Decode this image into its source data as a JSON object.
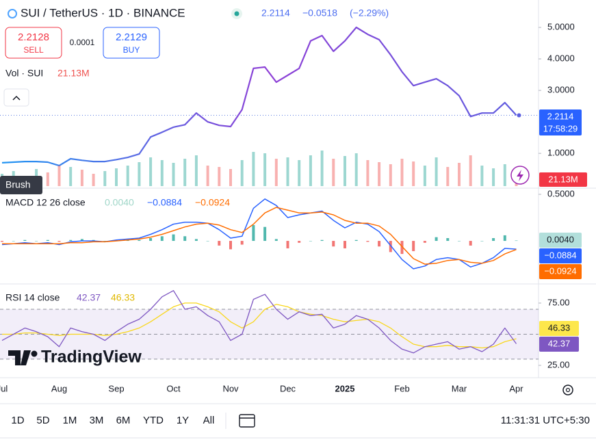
{
  "ui": {
    "title": "SUI / TetherUS · 1D · BINANCE",
    "price": "2.2114",
    "change": "−0.0518",
    "change_pct": "(−2.29%)",
    "sell_price": "2.2128",
    "sell": "SELL",
    "spread": "0.0001",
    "buy_price": "2.2129",
    "buy": "BUY",
    "tooltip": "Brush",
    "logo": "TradingView",
    "timeframes": [
      "1D",
      "5D",
      "1M",
      "3M",
      "6M",
      "YTD",
      "1Y",
      "All"
    ],
    "clock": "11:31:31 UTC+5:30"
  },
  "chart_data": [
    {
      "type": "line",
      "categories": [
        "Jul",
        null,
        null,
        null,
        null,
        "Aug",
        null,
        null,
        null,
        null,
        "Sep",
        null,
        null,
        null,
        null,
        "Oct",
        null,
        null,
        null,
        null,
        "Nov",
        null,
        null,
        null,
        null,
        "Dec",
        null,
        null,
        null,
        null,
        "2025",
        null,
        null,
        null,
        null,
        "Feb",
        null,
        null,
        null,
        null,
        "Mar",
        null,
        null,
        null,
        null,
        "Apr"
      ],
      "values": [
        0.7,
        0.72,
        0.74,
        0.74,
        0.72,
        0.61,
        0.83,
        0.78,
        0.74,
        0.74,
        0.8,
        0.87,
        0.98,
        1.52,
        1.67,
        1.83,
        1.91,
        2.28,
        2.0,
        1.89,
        1.85,
        2.39,
        3.7,
        3.74,
        3.26,
        3.48,
        3.7,
        4.57,
        4.74,
        4.24,
        4.57,
        5.0,
        4.78,
        4.61,
        4.13,
        3.59,
        3.15,
        3.26,
        3.37,
        3.15,
        2.83,
        2.17,
        2.28,
        2.28,
        2.61,
        2.21
      ],
      "gradient": [
        "#2196f3",
        "#8e3fd6",
        "#5b5fe0"
      ],
      "ylim": [
        -0.04,
        5.87
      ],
      "yticks": [
        {
          "value": 1,
          "label": "1.0000"
        },
        {
          "value": 3,
          "label": "3.0000"
        },
        {
          "value": 4,
          "label": "4.0000"
        },
        {
          "value": 5,
          "label": "5.0000"
        }
      ],
      "last_label": "2.2114",
      "countdown": "17:58:29"
    },
    {
      "type": "volume",
      "title": "Vol · SUI",
      "values": [
        18,
        22,
        15,
        25,
        20,
        30,
        28,
        24,
        18,
        22,
        26,
        30,
        35,
        42,
        38,
        34,
        40,
        45,
        30,
        28,
        25,
        38,
        50,
        48,
        40,
        42,
        38,
        45,
        52,
        40,
        44,
        48,
        38,
        35,
        32,
        40,
        36,
        30,
        42,
        28,
        34,
        45,
        30,
        26,
        32,
        21.13
      ],
      "last_label": "21.13M",
      "ylim": [
        0,
        272
      ],
      "up_color": "#26a69a",
      "down_color": "#ef5350"
    },
    {
      "type": "macd",
      "title": "MACD 12 26 close",
      "ylim": [
        -0.44,
        0.544
      ],
      "yticks": [
        {
          "value": 0.5,
          "label": "0.5000"
        }
      ],
      "histogram": {
        "up_color": "#26a69a",
        "down_color": "#ef5350",
        "values": [
          -0.01,
          0.0,
          0.01,
          0.0,
          0.01,
          -0.01,
          0.01,
          0.02,
          0.01,
          0.0,
          0.01,
          0.01,
          0.01,
          0.03,
          0.05,
          0.07,
          0.05,
          0.02,
          0.0,
          -0.05,
          -0.09,
          -0.04,
          0.17,
          0.15,
          0.02,
          -0.08,
          -0.02,
          0.0,
          0.01,
          -0.06,
          -0.08,
          0.01,
          -0.01,
          -0.06,
          -0.12,
          -0.14,
          -0.11,
          -0.02,
          0.04,
          0.03,
          0.0,
          -0.05,
          0.0,
          0.03,
          0.06,
          0.004
        ],
        "last_label": "0.0040"
      },
      "macd": {
        "color": "#2962ff",
        "values": [
          -0.04,
          -0.03,
          -0.02,
          -0.03,
          -0.02,
          -0.04,
          -0.01,
          0.0,
          0.0,
          -0.01,
          0.01,
          0.02,
          0.03,
          0.07,
          0.12,
          0.18,
          0.2,
          0.2,
          0.19,
          0.12,
          0.03,
          0.05,
          0.35,
          0.45,
          0.38,
          0.25,
          0.28,
          0.3,
          0.32,
          0.22,
          0.14,
          0.2,
          0.18,
          0.1,
          -0.05,
          -0.2,
          -0.3,
          -0.27,
          -0.2,
          -0.18,
          -0.2,
          -0.28,
          -0.24,
          -0.18,
          -0.08,
          -0.0884
        ],
        "last_label": "−0.0884"
      },
      "signal": {
        "color": "#ff6d00",
        "values": [
          -0.03,
          -0.03,
          -0.03,
          -0.03,
          -0.03,
          -0.03,
          -0.02,
          -0.02,
          -0.01,
          -0.01,
          0.0,
          0.01,
          0.02,
          0.04,
          0.07,
          0.11,
          0.15,
          0.18,
          0.19,
          0.17,
          0.12,
          0.09,
          0.18,
          0.3,
          0.36,
          0.33,
          0.3,
          0.3,
          0.31,
          0.28,
          0.22,
          0.19,
          0.19,
          0.16,
          0.07,
          -0.06,
          -0.19,
          -0.25,
          -0.24,
          -0.21,
          -0.2,
          -0.23,
          -0.24,
          -0.21,
          -0.14,
          -0.0924
        ],
        "last_label": "−0.0924"
      }
    },
    {
      "type": "rsi",
      "title": "RSI 14 close",
      "ylim": [
        17.3,
        88.7
      ],
      "yticks": [
        {
          "value": 75,
          "label": "75.00"
        },
        {
          "value": 25,
          "label": "25.00"
        }
      ],
      "levels": [
        30,
        50,
        70
      ],
      "band_color": "rgba(126,87,194,0.10)",
      "rsi": {
        "color": "#7e57c2",
        "values": [
          45,
          50,
          55,
          52,
          48,
          40,
          55,
          52,
          50,
          45,
          52,
          58,
          62,
          70,
          80,
          85,
          70,
          72,
          65,
          60,
          45,
          50,
          78,
          82,
          70,
          62,
          68,
          65,
          66,
          55,
          58,
          65,
          62,
          55,
          45,
          38,
          35,
          40,
          42,
          44,
          38,
          40,
          36,
          42,
          55,
          42.37
        ],
        "last_label": "42.37"
      },
      "ma": {
        "color": "#f9d71c",
        "values": [
          50,
          50,
          51,
          51,
          50,
          49,
          50,
          50,
          50,
          49,
          50,
          52,
          55,
          60,
          66,
          72,
          75,
          75,
          72,
          68,
          60,
          55,
          60,
          70,
          74,
          72,
          68,
          66,
          65,
          62,
          60,
          61,
          62,
          60,
          55,
          48,
          42,
          40,
          40,
          41,
          40,
          40,
          39,
          40,
          44,
          46.33
        ],
        "last_label": "46.33"
      }
    }
  ]
}
